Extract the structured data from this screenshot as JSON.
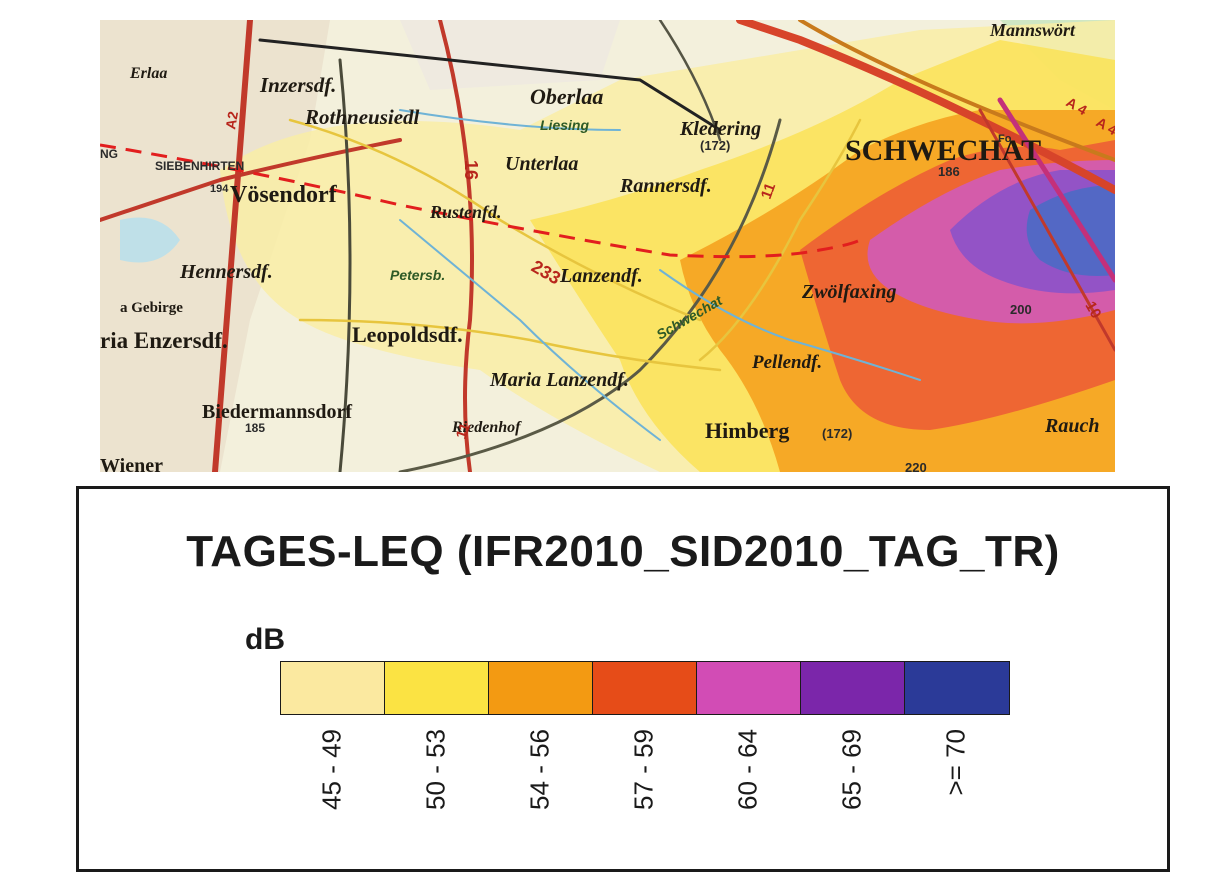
{
  "map": {
    "places": {
      "mannsworth": "Mannswört",
      "erlaa": "Erlaa",
      "inzersdf": "Inzersdf.",
      "oberlaa": "Oberlaa",
      "rothneusiedl": "Rothneusiedl",
      "kledering": "Kledering",
      "schwechat": "SCHWECHAT",
      "siebenhirten": "SIEBENHIRTEN",
      "voesendorf": "Vösendorf",
      "unterlaa": "Unterlaa",
      "rannersdf": "Rannersdf.",
      "rustenfd": "Rustenfd.",
      "hennersdf": "Hennersdf.",
      "lanzendf": "Lanzendf.",
      "zwoelfaxing": "Zwölfaxing",
      "gebirge": "a Gebirge",
      "enzersdf": "ria Enzersdf.",
      "leopoldsdf": "Leopoldsdf.",
      "maria_lanzendf": "Maria Lanzendf.",
      "pellendf": "Pellendf.",
      "biedermannsdorf": "Biedermannsdorf",
      "riedenhof": "Riedenhof",
      "himberg": "Himberg",
      "rauch": "Rauch",
      "wiener": "Wiener",
      "liesing": "Liesing",
      "petersb": "Petersb.",
      "schwechat_river": "Schwechat"
    },
    "labels": {
      "n172a": "(172)",
      "n172b": "(172)",
      "n186": "186",
      "n194": "194",
      "n200": "200",
      "n185": "185",
      "n220": "220",
      "r16": "16",
      "r233": "233",
      "r11a": "11",
      "r11b": "11",
      "r10": "10",
      "a4": "A 4",
      "a4b": "A 4",
      "a2": "A2",
      "fo": "Fo",
      "ng": "NG"
    },
    "noise_colors": [
      "#f9eb9e",
      "#fbe04b",
      "#f59a17",
      "#ec4a1a",
      "#d355c0",
      "#8a2fb7",
      "#2e3d98"
    ]
  },
  "legend": {
    "title": "TAGES-LEQ (IFR2010_SID2010_TAG_TR)",
    "unit": "dB",
    "classes": [
      {
        "label": "45 - 49",
        "color": "#fbe9a0"
      },
      {
        "label": "50 - 53",
        "color": "#fbe343"
      },
      {
        "label": "54 - 56",
        "color": "#f39a12"
      },
      {
        "label": "57 - 59",
        "color": "#e64c18"
      },
      {
        "label": "60 - 64",
        "color": "#d24cb5"
      },
      {
        "label": "65 - 69",
        "color": "#7b26aa"
      },
      {
        "label": ">= 70",
        "color": "#2b3a98"
      }
    ]
  }
}
